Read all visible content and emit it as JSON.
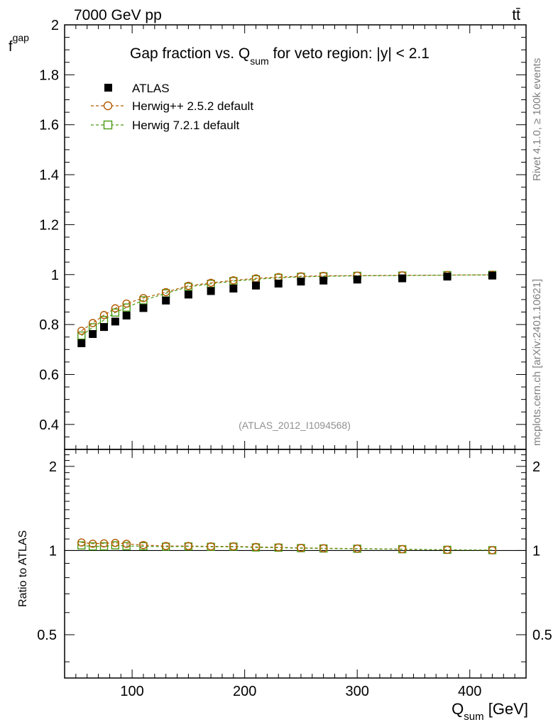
{
  "header": {
    "left": "7000 GeV pp",
    "right": "tt̄"
  },
  "side": {
    "rivet": "Rivet 4.1.0, ≥ 100k events",
    "mcplots": "mcplots.cern.ch [arXiv:2401.10621]"
  },
  "colors": {
    "data": "#000000",
    "herwigpp": "#b35a00",
    "herwig7": "#4a9a14"
  },
  "chart_data": [
    {
      "type": "scatter",
      "panel": "main",
      "title_main": "Gap fraction vs. Q",
      "title_sub": "sum",
      "title_rest": " for veto region: |y| < 2.1",
      "ylabel_main": "f",
      "ylabel_sub": "gap",
      "annotation": "(ATLAS_2012_I1094568)",
      "xlim": [
        40,
        450
      ],
      "ylim": [
        0.3,
        2.0
      ],
      "yticks": [
        0.4,
        0.6,
        0.8,
        1,
        1.2,
        1.4,
        1.6,
        1.8,
        2
      ],
      "ytick_labels": [
        "0.4",
        "0.6",
        "0.8",
        "1",
        "1.2",
        "1.4",
        "1.6",
        "1.8",
        "2"
      ],
      "legend_position": "top-left",
      "x": [
        55,
        65,
        75,
        85,
        95,
        110,
        130,
        150,
        170,
        190,
        210,
        230,
        250,
        270,
        300,
        340,
        380,
        420
      ],
      "series": [
        {
          "name": "ATLAS",
          "style": "filled-square",
          "values": [
            0.725,
            0.762,
            0.79,
            0.812,
            0.836,
            0.866,
            0.896,
            0.92,
            0.934,
            0.944,
            0.956,
            0.964,
            0.972,
            0.976,
            0.98,
            0.985,
            0.992,
            0.996
          ]
        },
        {
          "name": "Herwig++ 2.5.2 default",
          "style": "open-circle-dashed",
          "values": [
            0.775,
            0.806,
            0.838,
            0.865,
            0.884,
            0.906,
            0.93,
            0.955,
            0.967,
            0.977,
            0.985,
            0.99,
            0.993,
            0.995,
            0.996,
            0.997,
            0.998,
            0.999
          ]
        },
        {
          "name": "Herwig 7.2.1 default",
          "style": "open-square-dashed",
          "values": [
            0.756,
            0.789,
            0.818,
            0.848,
            0.868,
            0.897,
            0.925,
            0.951,
            0.963,
            0.974,
            0.981,
            0.987,
            0.991,
            0.993,
            0.995,
            0.996,
            0.998,
            0.999
          ]
        }
      ]
    },
    {
      "type": "scatter",
      "panel": "ratio",
      "ylabel": "Ratio to ATLAS",
      "xlabel_main": "Q",
      "xlabel_sub": "sum",
      "xlabel_rest": " [GeV]",
      "xlim": [
        40,
        450
      ],
      "ylim": [
        0.35,
        2.3
      ],
      "yscale": "log",
      "xticks": [
        100,
        200,
        300,
        400
      ],
      "xtick_labels": [
        "100",
        "200",
        "300",
        "400"
      ],
      "yticks": [
        0.5,
        1,
        2
      ],
      "ytick_labels": [
        "0.5",
        "1",
        "2"
      ],
      "x": [
        55,
        65,
        75,
        85,
        95,
        110,
        130,
        150,
        170,
        190,
        210,
        230,
        250,
        270,
        300,
        340,
        380,
        420
      ],
      "series": [
        {
          "name": "Herwig++ 2.5.2 default",
          "values": [
            1.069,
            1.058,
            1.061,
            1.065,
            1.057,
            1.046,
            1.038,
            1.038,
            1.035,
            1.035,
            1.03,
            1.027,
            1.022,
            1.019,
            1.016,
            1.012,
            1.006,
            1.003
          ]
        },
        {
          "name": "Herwig 7.2.1 default",
          "values": [
            1.043,
            1.035,
            1.035,
            1.044,
            1.038,
            1.036,
            1.032,
            1.034,
            1.031,
            1.032,
            1.026,
            1.024,
            1.02,
            1.017,
            1.015,
            1.011,
            1.006,
            1.003
          ]
        }
      ]
    }
  ]
}
